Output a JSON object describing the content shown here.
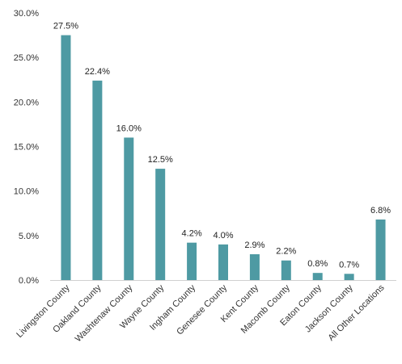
{
  "chart_data": {
    "type": "bar",
    "categories": [
      "Livingston County",
      "Oakland County",
      "Washtenaw County",
      "Wayne County",
      "Ingham County",
      "Genesee County",
      "Kent County",
      "Macomb County",
      "Eaton County",
      "Jackson County",
      "All Other Locations"
    ],
    "values": [
      27.5,
      22.4,
      16.0,
      12.5,
      4.2,
      4.0,
      2.9,
      2.2,
      0.8,
      0.7,
      6.8
    ],
    "data_labels": [
      "27.5%",
      "22.4%",
      "16.0%",
      "12.5%",
      "4.2%",
      "4.0%",
      "2.9%",
      "2.2%",
      "0.8%",
      "0.7%",
      "6.8%"
    ],
    "yticks": [
      0,
      5,
      10,
      15,
      20,
      25,
      30
    ],
    "ytick_labels": [
      "0.0%",
      "5.0%",
      "10.0%",
      "15.0%",
      "20.0%",
      "25.0%",
      "30.0%"
    ],
    "ylim": [
      0,
      30
    ],
    "grid": false,
    "legend": "none",
    "bar_color": "#4e9aa3",
    "axis_color": "#d0d0d0"
  }
}
